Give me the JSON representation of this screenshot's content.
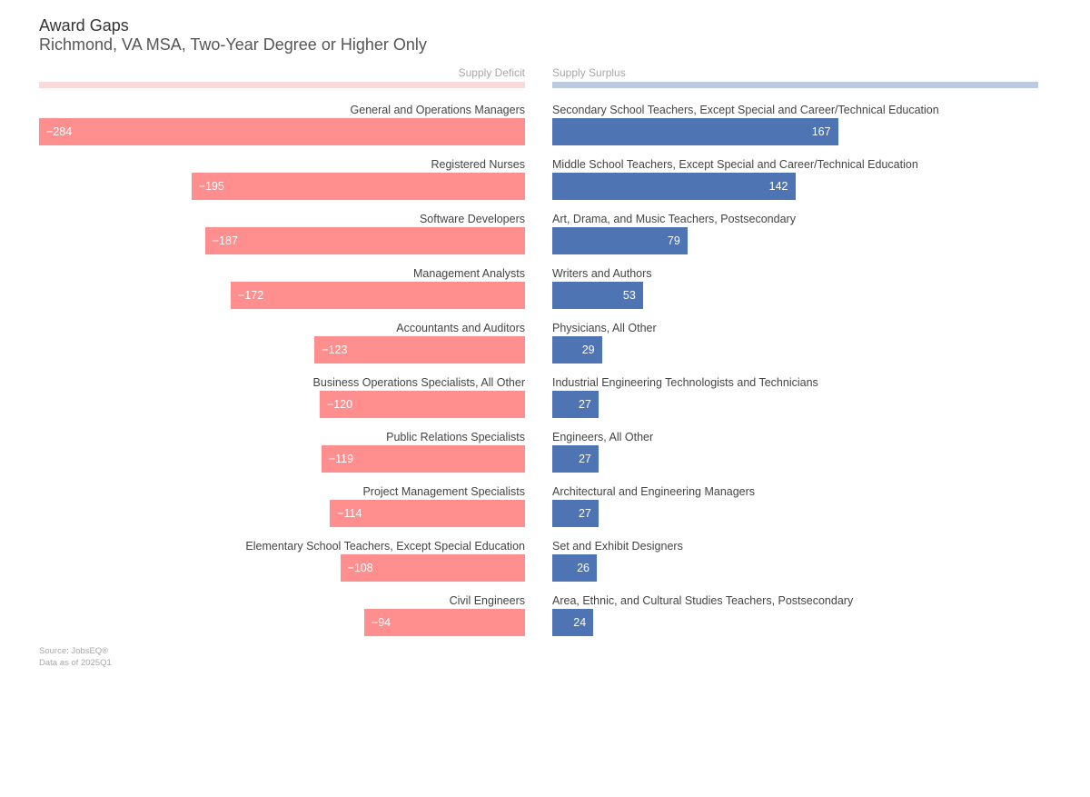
{
  "chart_data": {
    "type": "bar",
    "title": "Award Gaps",
    "subtitle": "Richmond, VA MSA, Two-Year Degree or Higher Only",
    "deficit_label": "Supply Deficit",
    "surplus_label": "Supply Surplus",
    "deficit": {
      "categories": [
        "General and Operations Managers",
        "Registered Nurses",
        "Software Developers",
        "Management Analysts",
        "Accountants and Auditors",
        "Business Operations Specialists, All Other",
        "Public Relations Specialists",
        "Project Management Specialists",
        "Elementary School Teachers, Except Special Education",
        "Civil Engineers"
      ],
      "values": [
        -284,
        -195,
        -187,
        -172,
        -123,
        -120,
        -119,
        -114,
        -108,
        -94
      ],
      "labels": [
        "−284",
        "−195",
        "−187",
        "−172",
        "−123",
        "−120",
        "−119",
        "−114",
        "−108",
        "−94"
      ]
    },
    "surplus": {
      "categories": [
        "Secondary School Teachers, Except Special and Career/Technical Education",
        "Middle School Teachers, Except Special and Career/Technical Education",
        "Art, Drama, and Music Teachers, Postsecondary",
        "Writers and Authors",
        "Physicians, All Other",
        "Industrial Engineering Technologists and Technicians",
        "Engineers, All Other",
        "Architectural and Engineering Managers",
        "Set and Exhibit Designers",
        "Area, Ethnic, and Cultural Studies Teachers, Postsecondary"
      ],
      "values": [
        167,
        142,
        79,
        53,
        29,
        27,
        27,
        27,
        26,
        24
      ],
      "labels": [
        "167",
        "142",
        "79",
        "53",
        "29",
        "27",
        "27",
        "27",
        "26",
        "24"
      ]
    },
    "deficit_range": [
      -284,
      0
    ],
    "surplus_range": [
      0,
      284
    ],
    "colors": {
      "deficit": "#ff8f8f",
      "surplus": "#4e74b3",
      "deficit_header": "#fcd9d9",
      "surplus_header": "#bccbe3"
    }
  },
  "footer": {
    "source": "Source: JobsEQ®",
    "as_of": "Data as of 2025Q1"
  }
}
